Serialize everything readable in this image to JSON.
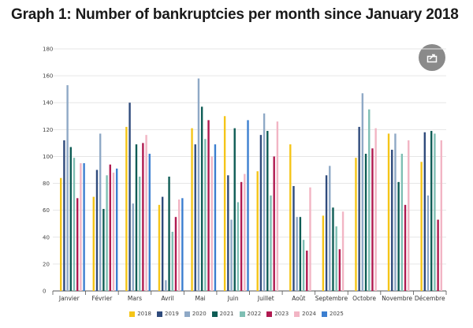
{
  "title": "Graph 1: Number of bankruptcies per month since January 2018",
  "share_icon": "share-icon",
  "chart_data": {
    "type": "bar",
    "title": "Graph 1: Number of bankruptcies per month since January 2018",
    "xlabel": "",
    "ylabel": "",
    "ylim": [
      0,
      180
    ],
    "yticks": [
      0,
      20,
      40,
      60,
      80,
      100,
      120,
      140,
      160,
      180
    ],
    "grid": true,
    "legend_position": "bottom",
    "categories": [
      "Janvier",
      "Février",
      "Mars",
      "Avril",
      "Mai",
      "Juin",
      "Juillet",
      "Août",
      "Septembre",
      "Octobre",
      "Novembre",
      "Décembre"
    ],
    "series": [
      {
        "name": "2018",
        "color": "#f5c518",
        "values": [
          84,
          70,
          122,
          64,
          121,
          130,
          89,
          109,
          56,
          99,
          117,
          96
        ]
      },
      {
        "name": "2019",
        "color": "#2f4b7c",
        "values": [
          112,
          90,
          140,
          70,
          109,
          86,
          116,
          78,
          86,
          122,
          105,
          118
        ]
      },
      {
        "name": "2020",
        "color": "#8fa9c6",
        "values": [
          153,
          117,
          65,
          8,
          158,
          53,
          132,
          55,
          93,
          147,
          117,
          71
        ]
      },
      {
        "name": "2021",
        "color": "#0e5c55",
        "values": [
          107,
          61,
          109,
          85,
          137,
          121,
          119,
          55,
          62,
          102,
          81,
          119
        ]
      },
      {
        "name": "2022",
        "color": "#7fbfb4",
        "values": [
          99,
          86,
          85,
          44,
          113,
          66,
          71,
          38,
          48,
          135,
          102,
          117
        ]
      },
      {
        "name": "2023",
        "color": "#b01a50",
        "values": [
          69,
          94,
          110,
          55,
          127,
          81,
          100,
          30,
          31,
          106,
          64,
          53
        ]
      },
      {
        "name": "2024",
        "color": "#f2b5c4",
        "values": [
          95,
          88,
          116,
          68,
          100,
          87,
          126,
          77,
          59,
          121,
          112,
          112
        ]
      },
      {
        "name": "2025",
        "color": "#3c7fd0",
        "values": [
          95,
          91,
          102,
          69,
          109,
          127,
          null,
          null,
          null,
          null,
          null,
          null
        ]
      }
    ]
  }
}
